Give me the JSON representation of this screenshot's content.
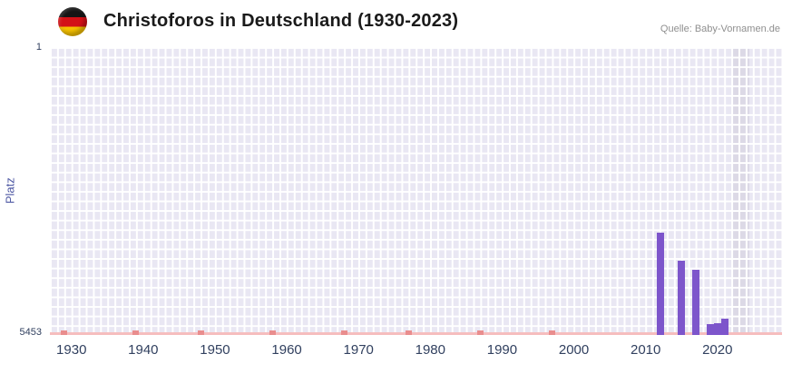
{
  "header": {
    "title": "Christoforos in Deutschland (1930-2023)",
    "source": "Quelle: Baby-Vornamen.de",
    "flag_icon": "germany-flag"
  },
  "chart_data": {
    "type": "bar",
    "title": "Christoforos in Deutschland (1930-2023)",
    "xlabel": "",
    "ylabel": "Platz",
    "y_axis": {
      "top_tick": "1",
      "bottom_tick": "5453",
      "min": 1,
      "max": 5453,
      "inverted": true
    },
    "x_domain": [
      1927,
      2029
    ],
    "x_ticks": [
      "1930",
      "1940",
      "1950",
      "1960",
      "1970",
      "1980",
      "1990",
      "2000",
      "2010",
      "2020"
    ],
    "grid": true,
    "legend": null,
    "bars": [
      {
        "year": 2012,
        "rank": 3520
      },
      {
        "year": 2015,
        "rank": 4040
      },
      {
        "year": 2017,
        "rank": 4220
      },
      {
        "year": 2019,
        "rank": 5250
      },
      {
        "year": 2020,
        "rank": 5230
      },
      {
        "year": 2021,
        "rank": 5150
      }
    ],
    "no_rank_marks": [
      1929,
      1939,
      1948,
      1958,
      1968,
      1977,
      1987,
      1997
    ],
    "highlight_band": {
      "from": 2022,
      "to": 2024.5
    },
    "colors": {
      "bar": "#7d55cb",
      "plot_bg": "#e9e7f3",
      "grid": "#ffffff",
      "band": "#dcd9e6",
      "axis_line": "#f6bdbe",
      "mark": "#e98d8e",
      "tick_label": "#31405f",
      "ylabel": "#4d57a3",
      "title": "#1a1a1a",
      "source": "#8f8f8f"
    }
  }
}
